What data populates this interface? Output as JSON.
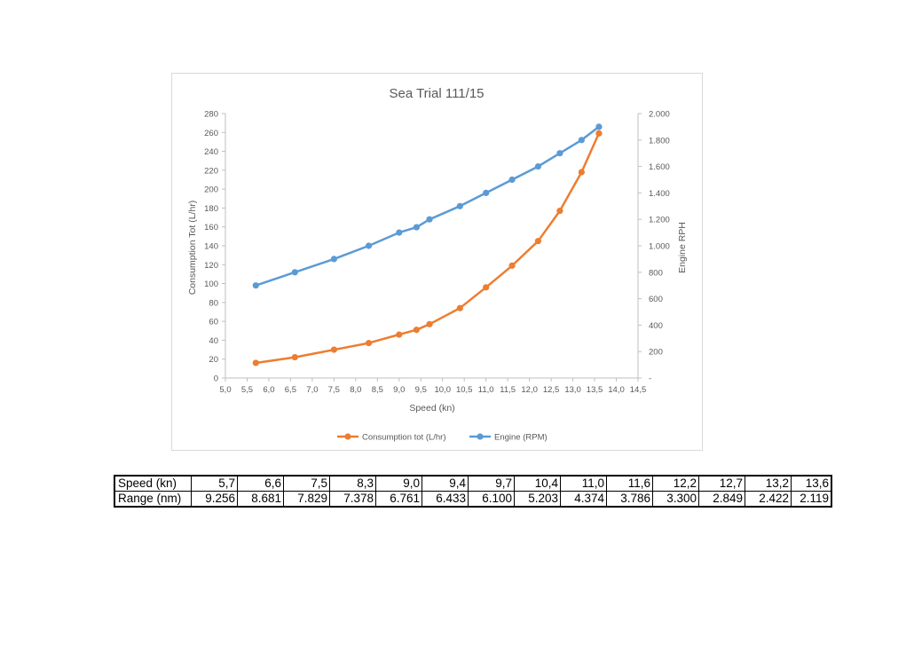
{
  "chart_data": {
    "type": "line",
    "title": "Sea Trial 111/15",
    "xlabel": "Speed (kn)",
    "ylabel": "Consumption Tot (L/hr)",
    "y2label": "Engine RPH",
    "xlim": [
      5.0,
      14.5
    ],
    "ylim": [
      0,
      280
    ],
    "y2lim": [
      0,
      2000
    ],
    "x_ticks": [
      "5,0",
      "5,5",
      "6,0",
      "6,5",
      "7,0",
      "7,5",
      "8,0",
      "8,5",
      "9,0",
      "9,5",
      "10,0",
      "10,5",
      "11,0",
      "11,5",
      "12,0",
      "12,5",
      "13,0",
      "13,5",
      "14,0",
      "14,5"
    ],
    "y_ticks": [
      "0",
      "20",
      "40",
      "60",
      "80",
      "100",
      "120",
      "140",
      "160",
      "180",
      "200",
      "220",
      "240",
      "260",
      "280"
    ],
    "y2_ticks": [
      "-",
      "200",
      "400",
      "600",
      "800",
      "1.000",
      "1.200",
      "1.400",
      "1.600",
      "1.800",
      "2.000"
    ],
    "grid": false,
    "legend_position": "bottom",
    "series": [
      {
        "name": "Consumption tot (L/hr)",
        "axis": "left",
        "color": "#ED7D31",
        "x": [
          5.7,
          6.6,
          7.5,
          8.3,
          9.0,
          9.4,
          9.7,
          10.4,
          11.0,
          11.6,
          12.2,
          12.7,
          13.2,
          13.6
        ],
        "y": [
          16,
          22,
          30,
          37,
          46,
          51,
          57,
          74,
          96,
          119,
          145,
          177,
          218,
          259
        ]
      },
      {
        "name": "Engine (RPM)",
        "axis": "right",
        "color": "#5B9BD5",
        "x": [
          5.7,
          6.6,
          7.5,
          8.3,
          9.0,
          9.4,
          9.7,
          10.4,
          11.0,
          11.6,
          12.2,
          12.7,
          13.2,
          13.6
        ],
        "y": [
          700,
          800,
          900,
          1000,
          1100,
          1140,
          1200,
          1300,
          1400,
          1500,
          1600,
          1700,
          1800,
          1900
        ]
      }
    ]
  },
  "table": {
    "rows": [
      {
        "label": "Speed (kn)",
        "values": [
          "5,7",
          "6,6",
          "7,5",
          "8,3",
          "9,0",
          "9,4",
          "9,7",
          "10,4",
          "11,0",
          "11,6",
          "12,2",
          "12,7",
          "13,2",
          "13,6"
        ]
      },
      {
        "label": "Range (nm)",
        "values": [
          "9.256",
          "8.681",
          "7.829",
          "7.378",
          "6.761",
          "6.433",
          "6.100",
          "5.203",
          "4.374",
          "3.786",
          "3.300",
          "2.849",
          "2.422",
          "2.119"
        ]
      }
    ]
  }
}
